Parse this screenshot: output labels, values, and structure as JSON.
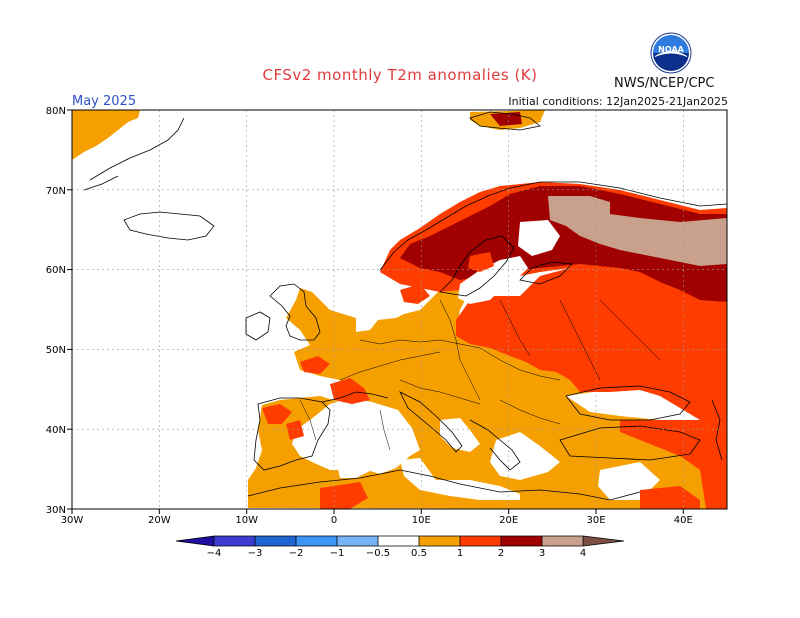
{
  "title": "CFSv2 monthly T2m anomalies (K)",
  "month": "May 2025",
  "initial_conditions": "Initial conditions: 12Jan2025-21Jan2025",
  "agency": "NWS/NCEP/CPC",
  "logo_text": "NOAA",
  "colors": {
    "below_4": "#1e0fa0",
    "m4_m3": "#3c3cd2",
    "m3_m2": "#1e64d2",
    "m2_m1": "#3c96f5",
    "m1_m05": "#78b4f5",
    "neutral": "#ffffff",
    "p05_1": "#f5a000",
    "p1_2": "#ff3c00",
    "p2_3": "#a00000",
    "p3_4": "#c8a08c",
    "above_4": "#7d5046"
  },
  "map": {
    "lon_range": [
      -30,
      45
    ],
    "lat_range": [
      30,
      80
    ],
    "lon_ticks": [
      "30W",
      "20W",
      "10W",
      "0",
      "10E",
      "20E",
      "30E",
      "40E"
    ],
    "lat_ticks": [
      "30N",
      "40N",
      "50N",
      "60N",
      "70N",
      "80N"
    ],
    "grid": true
  },
  "colorbar": {
    "labels": [
      "−4",
      "−3",
      "−2",
      "−1",
      "−0.5",
      "0.5",
      "1",
      "2",
      "3",
      "4"
    ],
    "units": "K"
  }
}
